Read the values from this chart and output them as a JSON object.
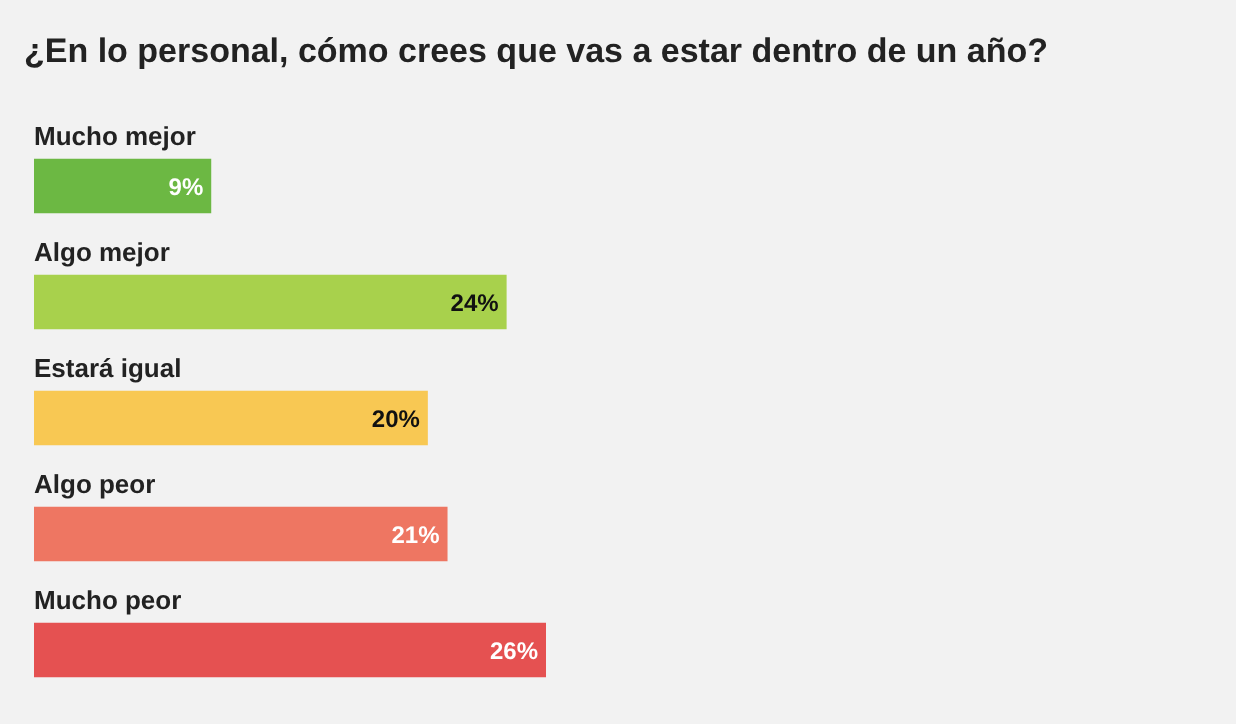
{
  "chart_data": {
    "type": "bar",
    "orientation": "horizontal",
    "title": "¿En lo personal, cómo crees que vas a estar dentro de un año?",
    "categories": [
      "Mucho mejor",
      "Algo mejor",
      "Estará igual",
      "Algo peor",
      "Mucho peor"
    ],
    "values": [
      9,
      24,
      20,
      21,
      26
    ],
    "value_labels": [
      "9%",
      "24%",
      "20%",
      "21%",
      "26%"
    ],
    "colors": [
      "#6cb843",
      "#a8d14c",
      "#f8c853",
      "#ee7662",
      "#e55151"
    ],
    "legend": false
  }
}
